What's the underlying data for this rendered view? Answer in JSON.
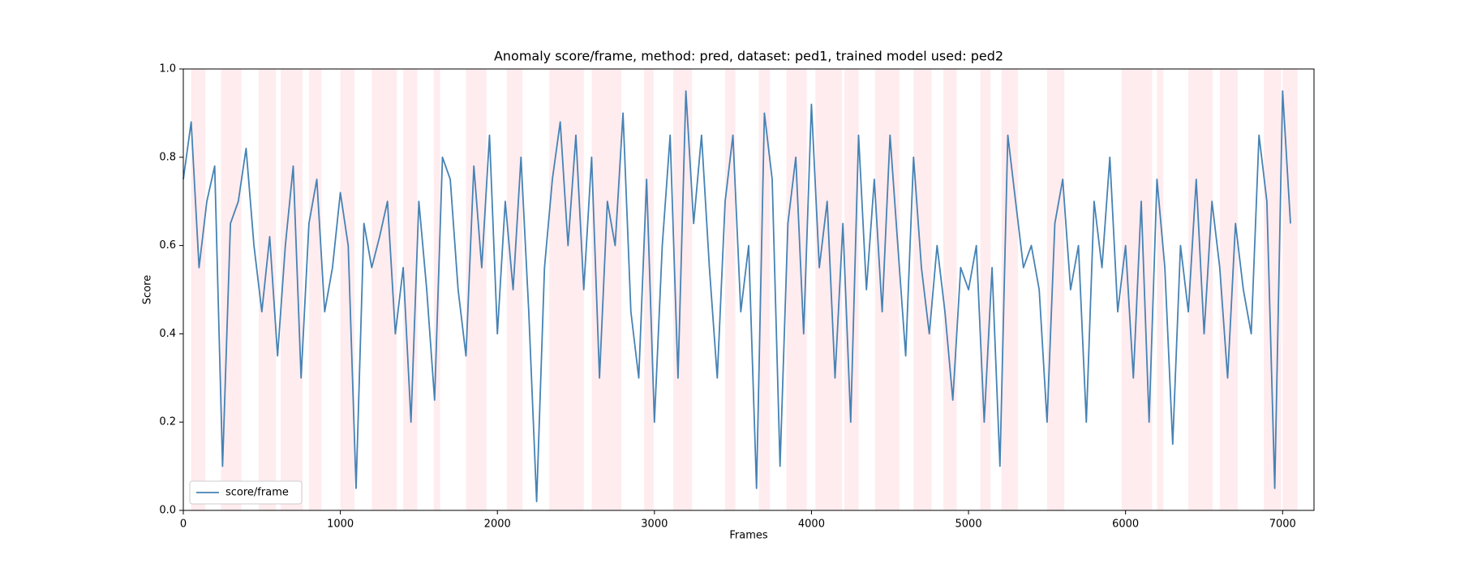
{
  "chart_data": {
    "type": "line",
    "title": "Anomaly score/frame, method: pred, dataset: ped1, trained model used: ped2",
    "xlabel": "Frames",
    "ylabel": "Score",
    "x": [
      0,
      50,
      100,
      150,
      200,
      250,
      300,
      350,
      400,
      450,
      500,
      550,
      600,
      650,
      700,
      750,
      800,
      850,
      900,
      950,
      1000,
      1050,
      1100,
      1150,
      1200,
      1250,
      1300,
      1350,
      1400,
      1450,
      1500,
      1550,
      1600,
      1650,
      1700,
      1750,
      1800,
      1850,
      1900,
      1950,
      2000,
      2050,
      2100,
      2150,
      2200,
      2250,
      2300,
      2350,
      2400,
      2450,
      2500,
      2550,
      2600,
      2650,
      2700,
      2750,
      2800,
      2850,
      2900,
      2950,
      3000,
      3050,
      3100,
      3150,
      3200,
      3250,
      3300,
      3350,
      3400,
      3450,
      3500,
      3550,
      3600,
      3650,
      3700,
      3750,
      3800,
      3850,
      3900,
      3950,
      4000,
      4050,
      4100,
      4150,
      4200,
      4250,
      4300,
      4350,
      4400,
      4450,
      4500,
      4550,
      4600,
      4650,
      4700,
      4750,
      4800,
      4850,
      4900,
      4950,
      5000,
      5050,
      5100,
      5150,
      5200,
      5250,
      5300,
      5350,
      5400,
      5450,
      5500,
      5550,
      5600,
      5650,
      5700,
      5750,
      5800,
      5850,
      5900,
      5950,
      6000,
      6050,
      6100,
      6150,
      6200,
      6250,
      6300,
      6350,
      6400,
      6450,
      6500,
      6550,
      6600,
      6650,
      6700,
      6750,
      6800,
      6850,
      6900,
      6950,
      7000,
      7050
    ],
    "series": [
      {
        "name": "score/frame",
        "color": "#4682b4",
        "values": [
          0.75,
          0.88,
          0.55,
          0.7,
          0.78,
          0.1,
          0.65,
          0.7,
          0.82,
          0.6,
          0.45,
          0.62,
          0.35,
          0.6,
          0.78,
          0.3,
          0.65,
          0.75,
          0.45,
          0.55,
          0.72,
          0.6,
          0.05,
          0.65,
          0.55,
          0.62,
          0.7,
          0.4,
          0.55,
          0.2,
          0.7,
          0.5,
          0.25,
          0.8,
          0.75,
          0.5,
          0.35,
          0.78,
          0.55,
          0.85,
          0.4,
          0.7,
          0.5,
          0.8,
          0.45,
          0.02,
          0.55,
          0.75,
          0.88,
          0.6,
          0.85,
          0.5,
          0.8,
          0.3,
          0.7,
          0.6,
          0.9,
          0.45,
          0.3,
          0.75,
          0.2,
          0.6,
          0.85,
          0.3,
          0.95,
          0.65,
          0.85,
          0.55,
          0.3,
          0.7,
          0.85,
          0.45,
          0.6,
          0.05,
          0.9,
          0.75,
          0.1,
          0.65,
          0.8,
          0.4,
          0.92,
          0.55,
          0.7,
          0.3,
          0.65,
          0.2,
          0.85,
          0.5,
          0.75,
          0.45,
          0.85,
          0.6,
          0.35,
          0.8,
          0.55,
          0.4,
          0.6,
          0.45,
          0.25,
          0.55,
          0.5,
          0.6,
          0.2,
          0.55,
          0.1,
          0.85,
          0.7,
          0.55,
          0.6,
          0.5,
          0.2,
          0.65,
          0.75,
          0.5,
          0.6,
          0.2,
          0.7,
          0.55,
          0.8,
          0.45,
          0.6,
          0.3,
          0.7,
          0.2,
          0.75,
          0.55,
          0.15,
          0.6,
          0.45,
          0.75,
          0.4,
          0.7,
          0.55,
          0.3,
          0.65,
          0.5,
          0.4,
          0.85,
          0.7,
          0.05,
          0.95,
          0.65
        ]
      }
    ],
    "shaded_regions": [
      [
        50,
        140
      ],
      [
        240,
        370
      ],
      [
        480,
        590
      ],
      [
        620,
        760
      ],
      [
        800,
        880
      ],
      [
        1000,
        1090
      ],
      [
        1200,
        1360
      ],
      [
        1400,
        1490
      ],
      [
        1595,
        1635
      ],
      [
        1800,
        1930
      ],
      [
        2060,
        2160
      ],
      [
        2330,
        2550
      ],
      [
        2600,
        2790
      ],
      [
        2935,
        2995
      ],
      [
        3120,
        3240
      ],
      [
        3450,
        3515
      ],
      [
        3665,
        3735
      ],
      [
        3840,
        3970
      ],
      [
        4025,
        4195
      ],
      [
        4210,
        4300
      ],
      [
        4405,
        4560
      ],
      [
        4650,
        4765
      ],
      [
        4840,
        4925
      ],
      [
        5075,
        5140
      ],
      [
        5210,
        5315
      ],
      [
        5500,
        5610
      ],
      [
        5975,
        6170
      ],
      [
        6200,
        6240
      ],
      [
        6400,
        6555
      ],
      [
        6600,
        6715
      ],
      [
        6880,
        6990
      ],
      [
        7000,
        7095
      ]
    ],
    "shade_color": "#ffc0cb",
    "xlim": [
      0,
      7200
    ],
    "xticks": [
      0,
      1000,
      2000,
      3000,
      4000,
      5000,
      6000,
      7000
    ],
    "ylim": [
      0,
      1
    ],
    "yticks": [
      {
        "value": 0,
        "label": "0.0"
      },
      0.2,
      0.4,
      0.6,
      0.8,
      {
        "value": 1,
        "label": "1.0"
      }
    ],
    "legend": "lower left"
  }
}
